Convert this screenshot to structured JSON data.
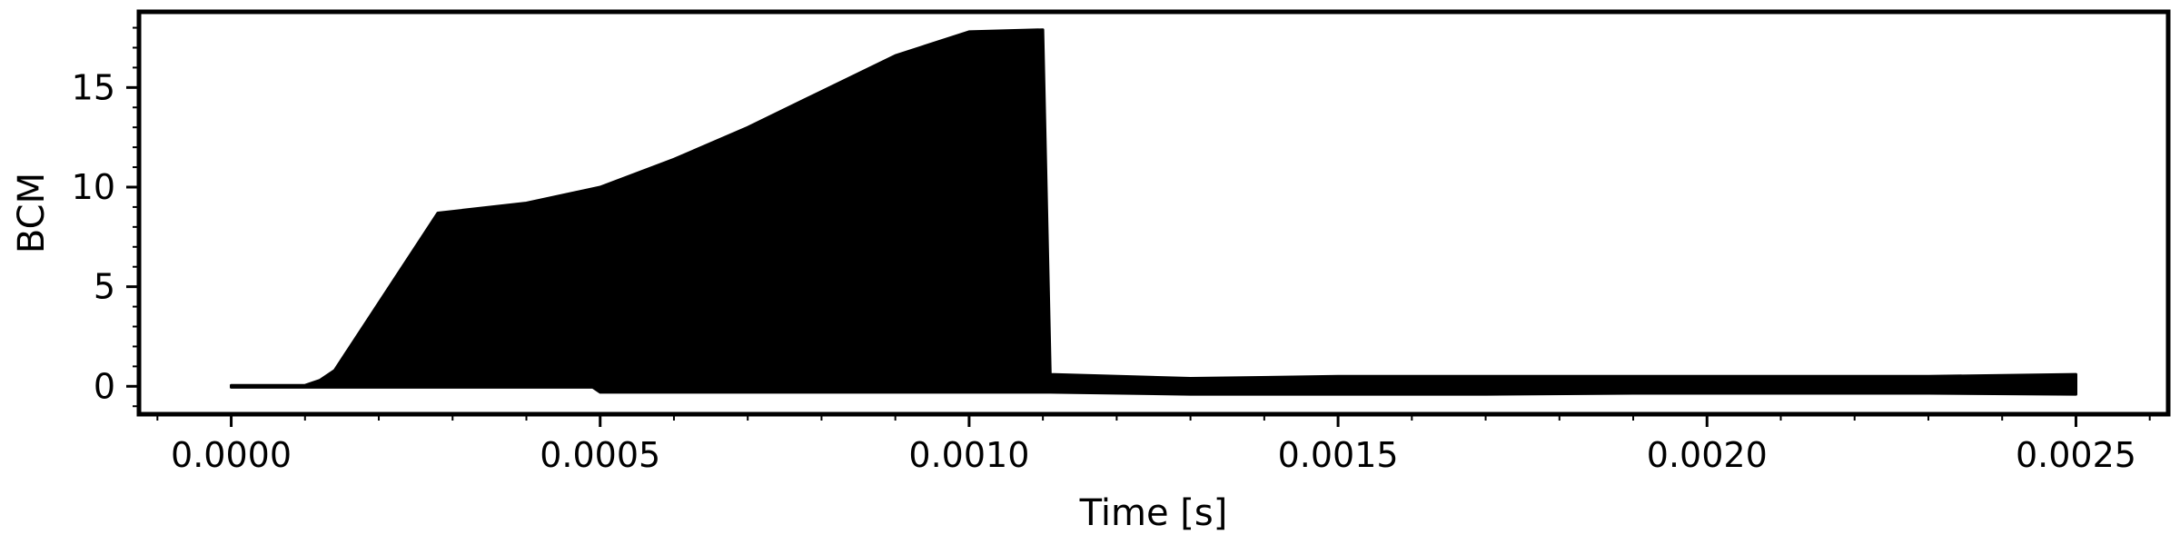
{
  "chart_data": {
    "type": "area",
    "title": "",
    "xlabel": "Time [s]",
    "ylabel": "BCM",
    "xlim": [
      -0.000125,
      0.002625
    ],
    "ylim": [
      -1.4,
      18.8
    ],
    "xticks": [
      {
        "value": 0.0,
        "label": "0.0000"
      },
      {
        "value": 0.0005,
        "label": "0.0005"
      },
      {
        "value": 0.001,
        "label": "0.0010"
      },
      {
        "value": 0.0015,
        "label": "0.0015"
      },
      {
        "value": 0.002,
        "label": "0.0020"
      },
      {
        "value": 0.0025,
        "label": "0.0025"
      }
    ],
    "yticks": [
      {
        "value": 0,
        "label": "0"
      },
      {
        "value": 5,
        "label": "5"
      },
      {
        "value": 10,
        "label": "10"
      },
      {
        "value": 15,
        "label": "15"
      }
    ],
    "x_minor_step": 0.0001,
    "y_minor_step": 1,
    "grid": false,
    "series": [
      {
        "line_color": "#000000",
        "upper_envelope": {
          "x": [
            0.0,
            0.0001,
            0.00012,
            0.00014,
            0.00028,
            0.0004,
            0.0005,
            0.0006,
            0.0007,
            0.0008,
            0.0009,
            0.001,
            0.0011,
            0.00111,
            0.0013,
            0.0015,
            0.0017,
            0.0019,
            0.0021,
            0.0023,
            0.0025
          ],
          "y": [
            0.05,
            0.05,
            0.3,
            0.8,
            8.7,
            9.2,
            10.0,
            11.4,
            13.0,
            14.8,
            16.6,
            17.8,
            17.9,
            0.6,
            0.4,
            0.5,
            0.5,
            0.5,
            0.5,
            0.5,
            0.6
          ]
        },
        "lower_envelope": {
          "x": [
            0.0,
            0.0001,
            0.00028,
            0.00049,
            0.0005,
            0.0008,
            0.0011,
            0.00111,
            0.0013,
            0.0015,
            0.0017,
            0.0019,
            0.0021,
            0.0023,
            0.0025
          ],
          "y": [
            -0.05,
            -0.05,
            -0.05,
            -0.05,
            -0.3,
            -0.3,
            -0.3,
            -0.3,
            -0.4,
            -0.4,
            -0.4,
            -0.35,
            -0.35,
            -0.35,
            -0.4
          ]
        }
      }
    ]
  }
}
